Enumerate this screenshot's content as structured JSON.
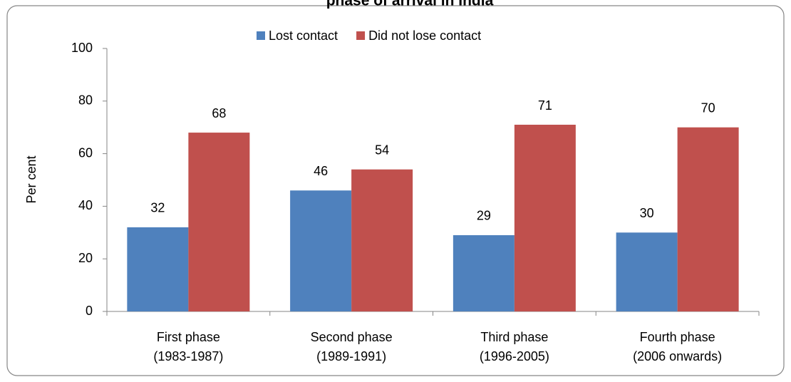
{
  "chart_data": {
    "type": "bar",
    "title": "phase of arrival in India",
    "categories": [
      [
        "First phase",
        "(1983-1987)"
      ],
      [
        "Second phase",
        "(1989-1991)"
      ],
      [
        "Third phase",
        "(1996-2005)"
      ],
      [
        "Fourth phase",
        "(2006 onwards)"
      ]
    ],
    "series": [
      {
        "name": "Lost contact",
        "color": "#4f81bd",
        "values": [
          32,
          46,
          29,
          30
        ]
      },
      {
        "name": "Did not lose contact",
        "color": "#c0504d",
        "values": [
          68,
          54,
          71,
          70
        ]
      }
    ],
    "y_label": "Per cent",
    "ylim": [
      0,
      100
    ],
    "yticks": [
      0,
      20,
      40,
      60,
      80,
      100
    ],
    "grid": false,
    "legend": "top"
  }
}
